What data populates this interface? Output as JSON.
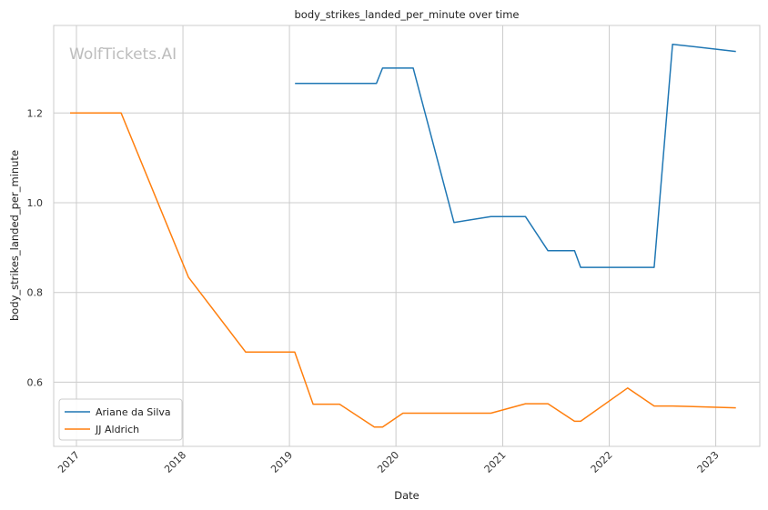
{
  "chart_data": {
    "type": "line",
    "title": "body_strikes_landed_per_minute over time",
    "xlabel": "Date",
    "ylabel": "body_strikes_landed_per_minute",
    "watermark": "WolfTickets.AI",
    "xlim": [
      "2016-10-15",
      "2023-06-01"
    ],
    "ylim": [
      0.457,
      1.395
    ],
    "x_ticks": [
      "2017",
      "2018",
      "2019",
      "2020",
      "2021",
      "2022",
      "2023"
    ],
    "y_ticks": [
      0.6,
      0.8,
      1.0,
      1.2
    ],
    "y_tick_labels": [
      "0.6",
      "0.8",
      "1.0",
      "1.2"
    ],
    "grid": true,
    "legend_position": "lower-left",
    "series": [
      {
        "name": "Ariane da Silva",
        "color": "#1f77b4",
        "points": [
          [
            "2019-01-20",
            1.266
          ],
          [
            "2019-10-26",
            1.266
          ],
          [
            "2019-11-16",
            1.3
          ],
          [
            "2020-02-29",
            1.3
          ],
          [
            "2020-07-18",
            0.956
          ],
          [
            "2020-11-21",
            0.969
          ],
          [
            "2021-03-20",
            0.969
          ],
          [
            "2021-06-05",
            0.893
          ],
          [
            "2021-09-04",
            0.893
          ],
          [
            "2021-09-25",
            0.856
          ],
          [
            "2022-06-04",
            0.856
          ],
          [
            "2022-08-06",
            1.353
          ],
          [
            "2023-03-11",
            1.337
          ]
        ]
      },
      {
        "name": "JJ Aldrich",
        "color": "#ff7f0e",
        "points": [
          [
            "2016-12-10",
            1.2
          ],
          [
            "2017-06-03",
            1.2
          ],
          [
            "2018-01-20",
            0.834
          ],
          [
            "2018-08-04",
            0.667
          ],
          [
            "2019-01-19",
            0.667
          ],
          [
            "2019-03-23",
            0.551
          ],
          [
            "2019-06-22",
            0.551
          ],
          [
            "2019-10-19",
            0.5
          ],
          [
            "2019-11-16",
            0.5
          ],
          [
            "2020-01-25",
            0.531
          ],
          [
            "2020-11-21",
            0.531
          ],
          [
            "2021-03-20",
            0.552
          ],
          [
            "2021-06-05",
            0.552
          ],
          [
            "2021-09-04",
            0.513
          ],
          [
            "2021-09-25",
            0.513
          ],
          [
            "2022-03-05",
            0.587
          ],
          [
            "2022-06-04",
            0.547
          ],
          [
            "2022-08-06",
            0.547
          ],
          [
            "2023-03-11",
            0.543
          ]
        ]
      }
    ]
  }
}
